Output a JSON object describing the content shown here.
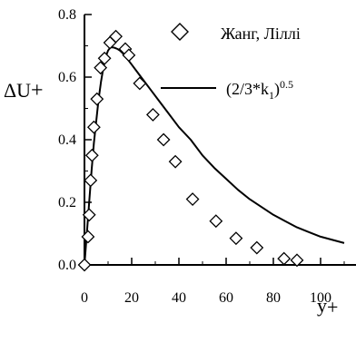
{
  "chart_data": {
    "type": "scatter",
    "xlabel": "y",
    "xlabel_sub": "+",
    "ylabel": "ΔU",
    "ylabel_sub": "+",
    "xlim": [
      0,
      110
    ],
    "ylim": [
      0,
      0.8
    ],
    "x_ticks": [
      "0",
      "20",
      "40",
      "60",
      "80",
      "100"
    ],
    "y_ticks": [
      "0.0",
      "0.2",
      "0.4",
      "0.6",
      "0.8"
    ],
    "grid": false,
    "legend_placement": "top-right",
    "series": [
      {
        "name": "Жанг, Ліллі",
        "kind": "markers",
        "marker": "diamond",
        "x": [
          0,
          1.5,
          2,
          2.6,
          3.2,
          4,
          5.3,
          6.8,
          8.5,
          10.8,
          13.3,
          17.3,
          18.8,
          23.4,
          29,
          33.5,
          38.5,
          45.8,
          55.7,
          64.2,
          73,
          84.5,
          90
        ],
        "y": [
          0.0,
          0.09,
          0.16,
          0.27,
          0.35,
          0.44,
          0.53,
          0.63,
          0.66,
          0.71,
          0.73,
          0.69,
          0.67,
          0.58,
          0.48,
          0.4,
          0.33,
          0.21,
          0.14,
          0.085,
          0.055,
          0.02,
          0.015
        ]
      },
      {
        "name_parts": [
          "(2/3*k",
          "1",
          ")",
          "0.5"
        ],
        "kind": "line",
        "x": [
          0,
          1,
          2,
          3,
          4,
          5,
          6,
          7,
          8,
          9,
          10,
          11,
          12,
          13,
          14,
          15,
          16,
          17,
          18,
          20,
          22,
          25,
          28,
          32,
          36,
          40,
          45,
          50,
          55,
          60,
          65,
          70,
          75,
          80,
          85,
          90,
          95,
          100,
          105,
          110
        ],
        "y": [
          0.0,
          0.1,
          0.2,
          0.3,
          0.39,
          0.46,
          0.53,
          0.585,
          0.63,
          0.665,
          0.685,
          0.695,
          0.695,
          0.693,
          0.69,
          0.685,
          0.678,
          0.67,
          0.66,
          0.64,
          0.62,
          0.59,
          0.56,
          0.52,
          0.48,
          0.44,
          0.4,
          0.35,
          0.31,
          0.275,
          0.24,
          0.21,
          0.185,
          0.16,
          0.14,
          0.12,
          0.105,
          0.09,
          0.08,
          0.07
        ]
      }
    ]
  }
}
